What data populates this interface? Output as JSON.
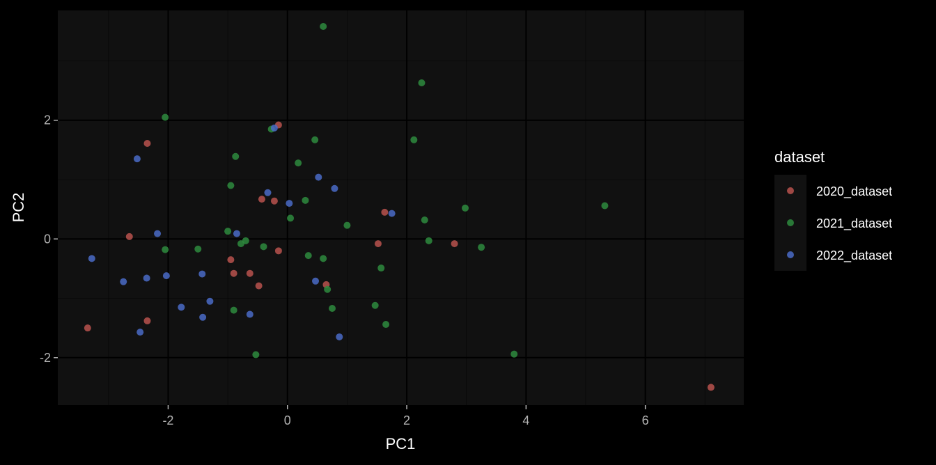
{
  "chart_data": {
    "type": "scatter",
    "xlabel": "PC1",
    "ylabel": "PC2",
    "xlim": [
      -3.85,
      7.65
    ],
    "ylim": [
      -2.8,
      3.85
    ],
    "x_major_ticks": [
      -2,
      0,
      2,
      4,
      6
    ],
    "x_tick_labels": [
      "-2",
      "0",
      "2",
      "4",
      "6"
    ],
    "y_major_ticks": [
      -2,
      0,
      2
    ],
    "y_tick_labels": [
      "-2",
      "0",
      "2"
    ],
    "x_minor_ticks": [
      -3,
      -1,
      1,
      3,
      5,
      7
    ],
    "y_minor_ticks": [
      -1,
      1,
      3
    ],
    "grid": true,
    "legend": {
      "title": "dataset",
      "position": "right"
    },
    "series": [
      {
        "name": "2020_dataset",
        "color": "#b8524d",
        "points": [
          [
            -3.35,
            -1.5
          ],
          [
            -2.65,
            0.04
          ],
          [
            -2.35,
            1.61
          ],
          [
            -2.35,
            -1.38
          ],
          [
            -0.95,
            -0.35
          ],
          [
            -0.9,
            -0.58
          ],
          [
            -0.63,
            -0.58
          ],
          [
            -0.48,
            -0.79
          ],
          [
            -0.43,
            0.67
          ],
          [
            -0.22,
            0.64
          ],
          [
            -0.15,
            1.92
          ],
          [
            -0.15,
            -0.2
          ],
          [
            0.65,
            -0.77
          ],
          [
            1.52,
            -0.08
          ],
          [
            1.63,
            0.45
          ],
          [
            2.8,
            -0.08
          ],
          [
            7.1,
            -2.5
          ]
        ]
      },
      {
        "name": "2021_dataset",
        "color": "#2e8b3e",
        "points": [
          [
            -2.05,
            2.05
          ],
          [
            -2.05,
            -0.18
          ],
          [
            -1.5,
            -0.17
          ],
          [
            -1.0,
            0.13
          ],
          [
            -0.95,
            0.9
          ],
          [
            -0.87,
            1.39
          ],
          [
            -0.9,
            -1.2
          ],
          [
            -0.78,
            -0.08
          ],
          [
            -0.7,
            -0.03
          ],
          [
            -0.53,
            -1.95
          ],
          [
            -0.4,
            -0.13
          ],
          [
            -0.27,
            1.85
          ],
          [
            0.05,
            0.35
          ],
          [
            0.18,
            1.28
          ],
          [
            0.3,
            0.65
          ],
          [
            0.35,
            -0.28
          ],
          [
            0.46,
            1.67
          ],
          [
            0.6,
            -0.33
          ],
          [
            0.6,
            3.58
          ],
          [
            0.67,
            -0.85
          ],
          [
            0.75,
            -1.17
          ],
          [
            1.0,
            0.23
          ],
          [
            1.47,
            -1.12
          ],
          [
            1.57,
            -0.49
          ],
          [
            1.65,
            -1.44
          ],
          [
            2.12,
            1.67
          ],
          [
            2.25,
            2.63
          ],
          [
            2.3,
            0.32
          ],
          [
            2.37,
            -0.03
          ],
          [
            2.98,
            0.52
          ],
          [
            3.25,
            -0.14
          ],
          [
            3.8,
            -1.94
          ],
          [
            5.32,
            0.56
          ]
        ]
      },
      {
        "name": "2022_dataset",
        "color": "#4a6bc7",
        "points": [
          [
            -3.28,
            -0.33
          ],
          [
            -2.75,
            -0.72
          ],
          [
            -2.52,
            1.35
          ],
          [
            -2.47,
            -1.57
          ],
          [
            -2.36,
            -0.66
          ],
          [
            -2.18,
            0.09
          ],
          [
            -2.03,
            -0.62
          ],
          [
            -1.78,
            -1.15
          ],
          [
            -1.43,
            -0.59
          ],
          [
            -1.42,
            -1.32
          ],
          [
            -1.3,
            -1.05
          ],
          [
            -0.85,
            0.09
          ],
          [
            -0.63,
            -1.27
          ],
          [
            -0.33,
            0.78
          ],
          [
            -0.22,
            1.87
          ],
          [
            0.03,
            0.6
          ],
          [
            0.47,
            -0.71
          ],
          [
            0.52,
            1.04
          ],
          [
            0.79,
            0.85
          ],
          [
            0.87,
            -1.65
          ],
          [
            1.75,
            0.43
          ]
        ]
      }
    ]
  }
}
